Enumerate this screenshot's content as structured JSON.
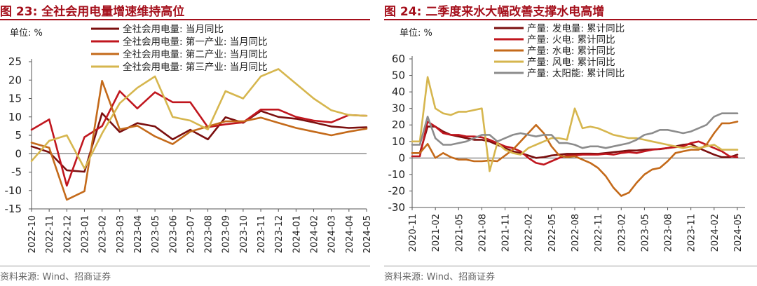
{
  "left": {
    "figure_title": "图 23: 全社会用电量增速维持高位",
    "source": "资料来源: Wind、招商证券"
  },
  "right": {
    "figure_title": "图 24: 二季度来水大幅改善支撑水电高增",
    "source": "资料来源: Wind、招商证券"
  },
  "chart_data": [
    {
      "type": "line",
      "unit_label": "单位: %",
      "ylim": [
        -15,
        25
      ],
      "yticks": [
        25,
        20,
        15,
        10,
        5,
        0,
        -5,
        -10,
        -15
      ],
      "x": [
        "2022-10",
        "2022-11",
        "2022-12",
        "2023-01",
        "2023-02",
        "2023-03",
        "2023-04",
        "2023-05",
        "2023-06",
        "2023-07",
        "2023-08",
        "2023-09",
        "2023-10",
        "2023-11",
        "2023-12",
        "2024-01",
        "2024-02",
        "2024-03",
        "2024-04",
        "2024-05"
      ],
      "xticks": [
        "2022-10",
        "2022-11",
        "2022-12",
        "2023-01",
        "2023-02",
        "2023-03",
        "2023-04",
        "2023-05",
        "2023-06",
        "2023-07",
        "2023-08",
        "2023-09",
        "2023-10",
        "2023-11",
        "2023-12",
        "2024-01",
        "2024-02",
        "2024-03",
        "2024-04",
        "2024-05"
      ],
      "legend_position": "top",
      "series": [
        {
          "name": "全社会用电量: 当月同比",
          "color": "#7b0f0f",
          "values": [
            2.0,
            0.4,
            -4.5,
            -4.9,
            11.0,
            5.9,
            8.3,
            7.4,
            3.9,
            6.5,
            3.9,
            9.9,
            8.4,
            11.6,
            10.0,
            9.5,
            8.5,
            7.4,
            7.0,
            7.2
          ]
        },
        {
          "name": "全社会用电量: 第一产业: 当月同比",
          "color": "#c0161e",
          "values": [
            6.5,
            9.3,
            -8.7,
            4.5,
            7.5,
            17.0,
            12.3,
            16.7,
            14.0,
            14.0,
            7.2,
            8.0,
            8.5,
            12.0,
            12.0,
            10.0,
            9.0,
            8.5,
            10.5,
            10.3
          ]
        },
        {
          "name": "全社会用电量: 第二产业: 当月同比",
          "color": "#c46a1a",
          "values": [
            3.0,
            1.6,
            -12.5,
            -10.2,
            19.8,
            6.6,
            7.6,
            4.7,
            2.6,
            6.0,
            7.4,
            8.8,
            8.8,
            9.8,
            8.4,
            7.0,
            6.0,
            5.0,
            6.0,
            6.8
          ]
        },
        {
          "name": "全社会用电量: 第三产业: 当月同比",
          "color": "#d6b64e",
          "values": [
            -2.0,
            3.5,
            5.0,
            -4.0,
            5.5,
            13.7,
            17.9,
            21.0,
            10.0,
            9.0,
            6.6,
            17.0,
            15.0,
            21.0,
            23.0,
            19.0,
            15.0,
            11.8,
            10.5,
            10.3
          ]
        }
      ]
    },
    {
      "type": "line",
      "unit_label": "单位: %",
      "ylim": [
        -30,
        60
      ],
      "yticks": [
        60,
        50,
        40,
        30,
        20,
        10,
        0,
        -10,
        -20,
        -30
      ],
      "x_range": [
        "2020-11",
        "2024-06"
      ],
      "xticks": [
        "2020-11",
        "2021-02",
        "2021-05",
        "2021-08",
        "2021-11",
        "2022-02",
        "2022-05",
        "2022-08",
        "2022-11",
        "2023-02",
        "2023-05",
        "2023-08",
        "2023-11",
        "2024-02",
        "2024-05"
      ],
      "legend_position": "top",
      "series": [
        {
          "name": "产量: 发电量: 累计同比",
          "color": "#7b0f0f",
          "values": [
            3.0,
            3.0,
            19.0,
            19.0,
            16.0,
            14.0,
            13.0,
            12.0,
            11.0,
            11.0,
            10.0,
            8.0,
            6.0,
            4.0,
            3.0,
            1.5,
            0.0,
            0.5,
            1.5,
            2.0,
            2.5,
            2.5,
            2.6,
            2.6,
            2.5,
            3.0,
            3.5,
            4.0,
            4.5,
            4.5,
            5.0,
            5.2,
            5.3,
            6.0,
            7.0,
            8.0,
            8.5,
            6.0,
            4.0,
            2.0,
            0.5,
            0.5,
            2.0
          ]
        },
        {
          "name": "产量: 火电: 累计同比",
          "color": "#c0161e",
          "values": [
            1.0,
            1.0,
            22.0,
            19.0,
            15.0,
            14.0,
            14.0,
            13.0,
            13.0,
            12.5,
            11.0,
            9.0,
            7.0,
            6.0,
            4.0,
            0.0,
            -3.0,
            -4.0,
            -2.0,
            0.0,
            1.5,
            1.5,
            2.0,
            2.0,
            2.0,
            2.5,
            2.0,
            3.0,
            3.5,
            3.0,
            4.0,
            5.0,
            5.5,
            6.0,
            6.5,
            7.0,
            9.0,
            10.0,
            8.0,
            6.0,
            4.0,
            1.0,
            0.5
          ]
        },
        {
          "name": "产量: 水电: 累计同比",
          "color": "#c46a1a",
          "values": [
            3.0,
            3.0,
            8.5,
            0.0,
            3.0,
            0.5,
            -1.0,
            -1.0,
            -2.0,
            -2.0,
            -1.5,
            -2.0,
            1.5,
            5.0,
            10.0,
            15.0,
            20.0,
            15.0,
            7.0,
            1.5,
            0.5,
            1.0,
            -1.0,
            -3.0,
            -6.0,
            -11.0,
            -18.0,
            -23.0,
            -21.0,
            -15.0,
            -10.0,
            -7.0,
            -6.0,
            -2.0,
            3.0,
            4.0,
            5.0,
            5.0,
            8.0,
            15.0,
            21.0,
            21.0,
            22.0
          ]
        },
        {
          "name": "产量: 风电: 累计同比",
          "color": "#d6b64e",
          "values": [
            10.0,
            10.0,
            49.0,
            30.0,
            27.0,
            26.0,
            28.0,
            28.0,
            29.0,
            30.0,
            -8.0,
            9.0,
            5.0,
            3.0,
            2.0,
            6.0,
            8.0,
            10.0,
            12.0,
            12.0,
            11.0,
            30.0,
            18.0,
            19.0,
            18.0,
            16.0,
            14.0,
            13.0,
            12.0,
            12.0,
            11.0,
            10.0,
            9.0,
            8.0,
            7.0,
            6.0,
            7.0,
            6.0,
            7.0,
            8.0,
            5.0,
            5.0,
            5.0
          ]
        },
        {
          "name": "产量: 太阳能: 累计同比",
          "color": "#8c8c8c",
          "values": [
            8.0,
            8.0,
            25.0,
            12.0,
            8.0,
            8.0,
            9.0,
            10.0,
            12.0,
            14.0,
            14.0,
            10.0,
            12.0,
            14.0,
            15.0,
            14.0,
            13.0,
            14.0,
            14.0,
            9.0,
            9.0,
            8.0,
            6.0,
            7.0,
            7.0,
            6.0,
            7.0,
            8.0,
            9.0,
            11.0,
            14.0,
            15.0,
            17.0,
            17.0,
            16.0,
            15.0,
            16.0,
            18.0,
            20.0,
            25.0,
            27.0,
            27.0,
            27.0
          ]
        }
      ]
    }
  ]
}
